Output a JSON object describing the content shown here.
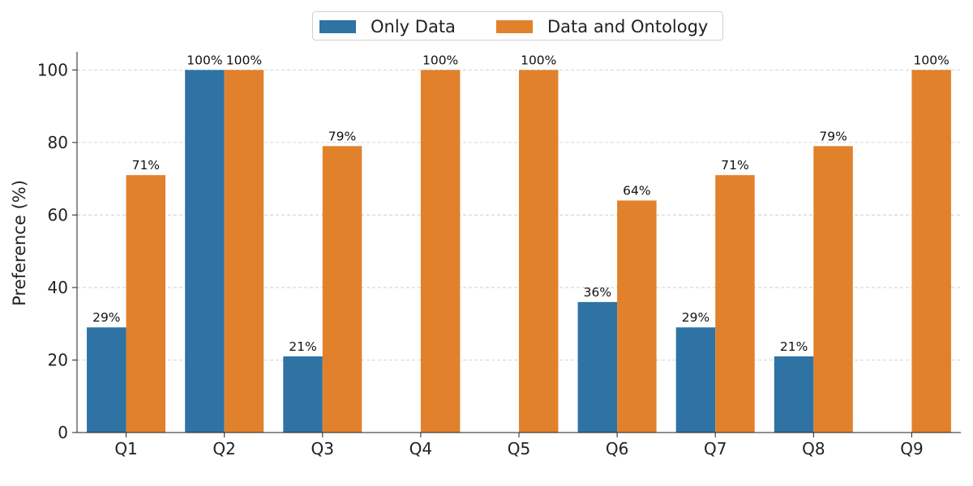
{
  "chart_data": {
    "type": "bar",
    "categories": [
      "Q1",
      "Q2",
      "Q3",
      "Q4",
      "Q5",
      "Q6",
      "Q7",
      "Q8",
      "Q9"
    ],
    "series": [
      {
        "name": "Only Data",
        "color": "#2e73a3",
        "values": [
          29,
          100,
          21,
          0,
          0,
          36,
          29,
          21,
          0
        ]
      },
      {
        "name": "Data and Ontology",
        "color": "#e1812c",
        "values": [
          71,
          100,
          79,
          100,
          100,
          64,
          71,
          79,
          100
        ]
      }
    ],
    "ylabel": "Preference (%)",
    "xlabel": "",
    "ylim": [
      0,
      105
    ],
    "yticks": [
      0,
      20,
      40,
      60,
      80,
      100
    ],
    "label_suffix": "%",
    "grid": "horizontal dashed",
    "legend_position": "top-center"
  }
}
